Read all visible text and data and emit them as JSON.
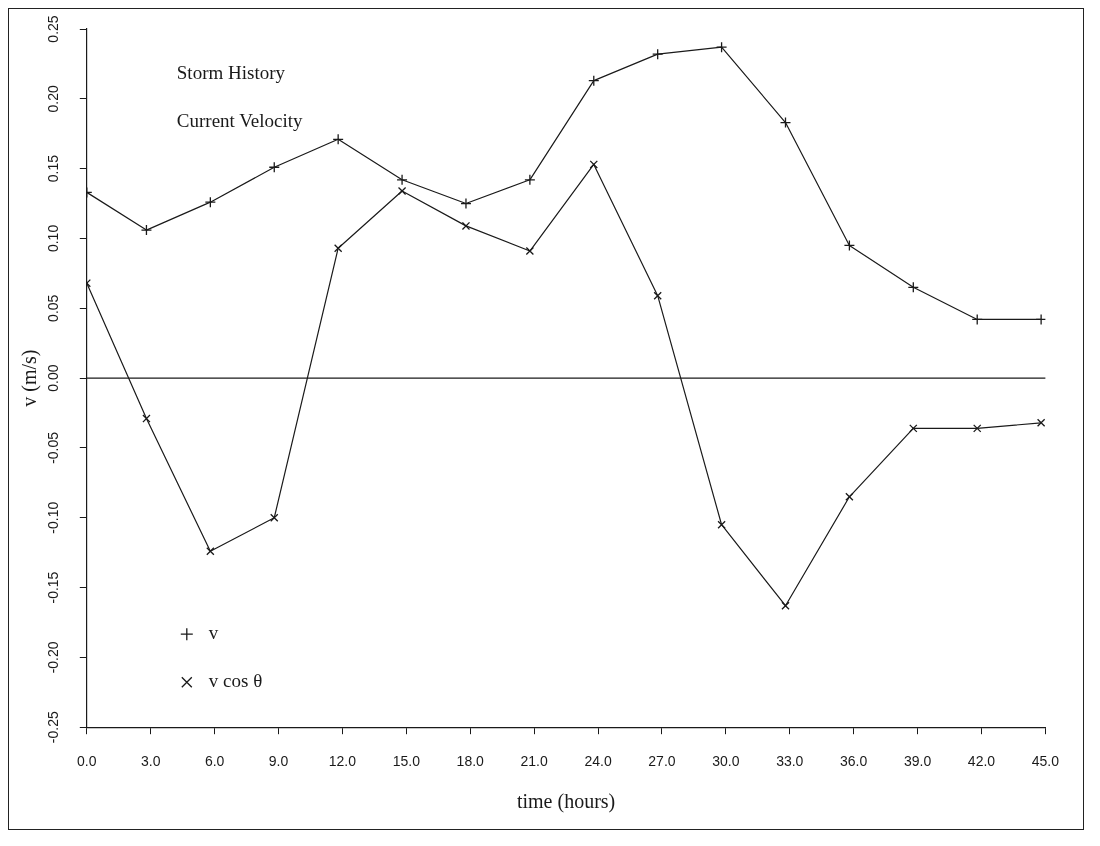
{
  "chart_data": {
    "type": "line",
    "title": "Storm History",
    "subtitle": "Current Velocity",
    "xlabel": "time (hours)",
    "ylabel": "v (m/s)",
    "x": [
      0,
      2.8,
      5.8,
      8.8,
      11.8,
      14.8,
      17.8,
      20.8,
      23.8,
      26.8,
      29.8,
      32.8,
      35.8,
      38.8,
      41.8,
      44.8
    ],
    "series": [
      {
        "name": "v",
        "color": "#1a1a1a",
        "marker": "plus",
        "values": [
          0.133,
          0.106,
          0.126,
          0.151,
          0.171,
          0.142,
          0.125,
          0.142,
          0.213,
          0.232,
          0.237,
          0.183,
          0.095,
          0.065,
          0.042,
          0.042
        ]
      },
      {
        "name": "v cos θ",
        "color": "#1a1a1a",
        "marker": "cross",
        "values": [
          0.068,
          -0.029,
          -0.124,
          -0.1,
          0.093,
          0.134,
          0.109,
          0.091,
          0.153,
          0.059,
          -0.105,
          -0.163,
          -0.085,
          -0.036,
          -0.036,
          -0.032
        ]
      }
    ],
    "xlim": [
      0,
      45
    ],
    "xticks": [
      {
        "value": 0,
        "label": "0.0"
      },
      {
        "value": 3,
        "label": "3.0"
      },
      {
        "value": 6,
        "label": "6.0"
      },
      {
        "value": 9,
        "label": "9.0"
      },
      {
        "value": 12,
        "label": "12.0"
      },
      {
        "value": 15,
        "label": "15.0"
      },
      {
        "value": 18,
        "label": "18.0"
      },
      {
        "value": 21,
        "label": "21.0"
      },
      {
        "value": 24,
        "label": "24.0"
      },
      {
        "value": 27,
        "label": "27.0"
      },
      {
        "value": 30,
        "label": "30.0"
      },
      {
        "value": 33,
        "label": "33.0"
      },
      {
        "value": 36,
        "label": "36.0"
      },
      {
        "value": 39,
        "label": "39.0"
      },
      {
        "value": 42,
        "label": "42.0"
      },
      {
        "value": 45,
        "label": "45.0"
      }
    ],
    "ylim": [
      -0.25,
      0.25
    ],
    "yticks": [
      {
        "value": -0.25,
        "label": "-0.25"
      },
      {
        "value": -0.2,
        "label": "-0.20"
      },
      {
        "value": -0.15,
        "label": "-0.15"
      },
      {
        "value": -0.1,
        "label": "-0.10"
      },
      {
        "value": -0.05,
        "label": "-0.05"
      },
      {
        "value": 0,
        "label": "0.00"
      },
      {
        "value": 0.05,
        "label": "0.05"
      },
      {
        "value": 0.1,
        "label": "0.10"
      },
      {
        "value": 0.15,
        "label": "0.15"
      },
      {
        "value": 0.2,
        "label": "0.20"
      },
      {
        "value": 0.25,
        "label": "0.25"
      }
    ],
    "ref_lines": [
      {
        "axis": "y",
        "value": 0,
        "color": "#1a1a1a"
      }
    ],
    "grid": false,
    "legend": "bottom left",
    "line_style": "solid"
  }
}
